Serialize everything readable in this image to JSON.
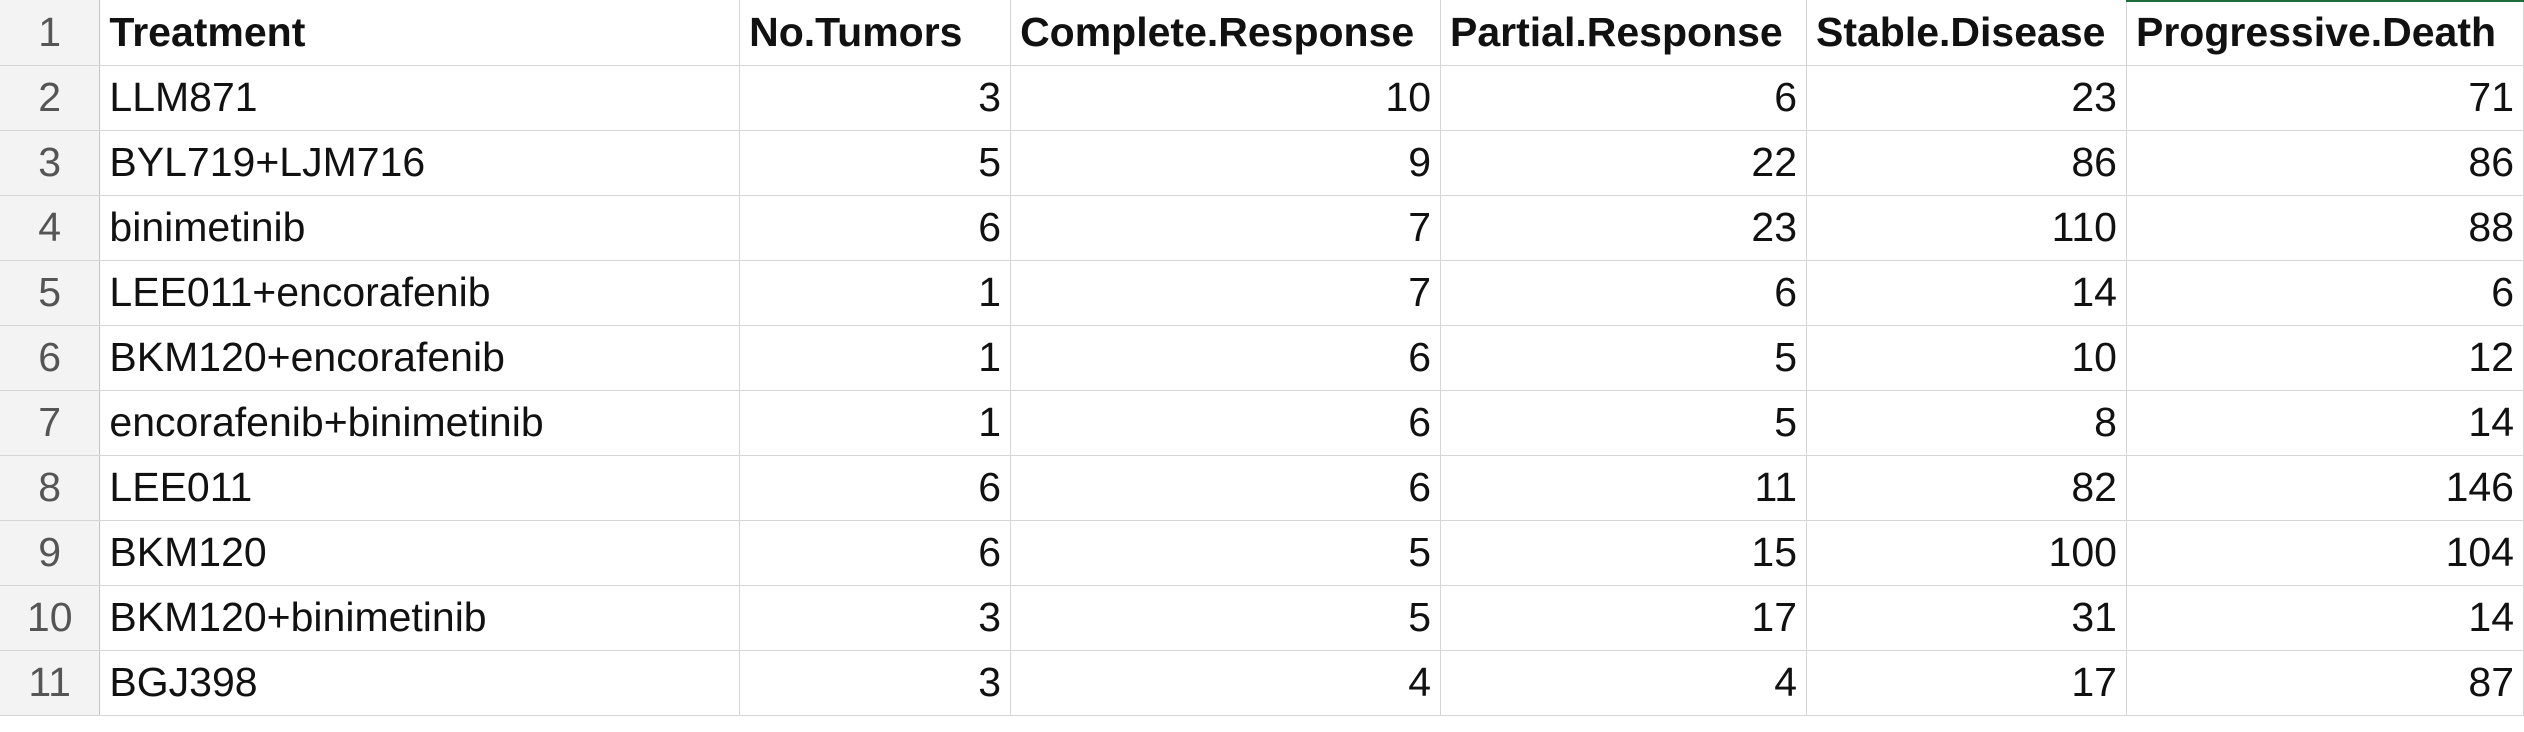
{
  "sheet": {
    "columns": [
      "Treatment",
      "No.Tumors",
      "Complete.Response",
      "Partial.Response",
      "Stable.Disease",
      "Progressive.Death"
    ],
    "row_numbers": [
      "1",
      "2",
      "3",
      "4",
      "5",
      "6",
      "7",
      "8",
      "9",
      "10",
      "11"
    ],
    "rows": [
      [
        "LLM871",
        "3",
        "10",
        "6",
        "23",
        "71"
      ],
      [
        "BYL719+LJM716",
        "5",
        "9",
        "22",
        "86",
        "86"
      ],
      [
        "binimetinib",
        "6",
        "7",
        "23",
        "110",
        "88"
      ],
      [
        "LEE011+encorafenib",
        "1",
        "7",
        "6",
        "14",
        "6"
      ],
      [
        "BKM120+encorafenib",
        "1",
        "6",
        "5",
        "10",
        "12"
      ],
      [
        "encorafenib+binimetinib",
        "1",
        "6",
        "5",
        "8",
        "14"
      ],
      [
        "LEE011",
        "6",
        "6",
        "11",
        "82",
        "146"
      ],
      [
        "BKM120",
        "6",
        "5",
        "15",
        "100",
        "104"
      ],
      [
        "BKM120+binimetinib",
        "3",
        "5",
        "17",
        "31",
        "14"
      ],
      [
        "BGJ398",
        "3",
        "4",
        "4",
        "17",
        "87"
      ]
    ]
  },
  "colors": {
    "grid_line": "#d6d6d6",
    "row_header_bg": "#f3f3f3",
    "selection_accent": "#1e6b3c"
  }
}
